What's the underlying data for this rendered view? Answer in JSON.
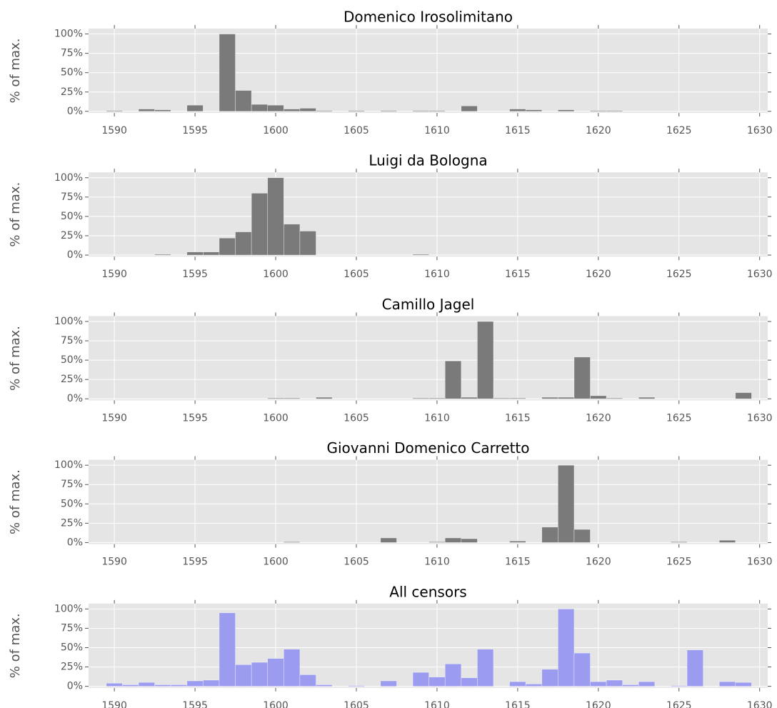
{
  "chart_data": [
    {
      "type": "histogram",
      "title": "Domenico Irosolimitano",
      "ylabel": "% of max.",
      "color": "#7a7a7a",
      "bins": [
        1589.5,
        1590.5,
        1591.5,
        1592.5,
        1593.5,
        1594.5,
        1595.5,
        1596.5,
        1597.5,
        1598.5,
        1599.5,
        1600.5,
        1601.5,
        1602.5,
        1603.5,
        1604.5,
        1605.5,
        1606.5,
        1607.5,
        1608.5,
        1609.5,
        1610.5,
        1611.5,
        1612.5,
        1613.5,
        1614.5,
        1615.5,
        1616.5,
        1617.5,
        1618.5,
        1619.5,
        1620.5,
        1621.5,
        1622.5,
        1623.5,
        1624.5,
        1625.5,
        1626.5,
        1627.5,
        1628.5,
        1629.5
      ],
      "values": [
        1,
        0,
        3,
        2,
        0,
        8,
        0,
        100,
        27,
        9,
        8,
        3,
        4,
        1,
        0,
        1,
        0,
        1,
        0,
        1,
        1,
        0,
        7,
        0,
        0,
        3,
        2,
        0,
        2,
        0,
        1,
        1,
        0,
        0,
        0,
        0,
        0,
        0,
        0,
        0
      ],
      "xlim": [
        1588.4,
        1630.5
      ],
      "xticks": [
        1590,
        1595,
        1600,
        1605,
        1610,
        1615,
        1620,
        1625,
        1630
      ],
      "ylim": [
        -2,
        107
      ],
      "yticks": [
        {
          "value": 0,
          "label": "0%"
        },
        {
          "value": 25,
          "label": "25%"
        },
        {
          "value": 50,
          "label": "50%"
        },
        {
          "value": 75,
          "label": "75%"
        },
        {
          "value": 100,
          "label": "100%"
        }
      ],
      "grid": true
    },
    {
      "type": "histogram",
      "title": "Luigi da Bologna",
      "ylabel": "% of max.",
      "color": "#7a7a7a",
      "bins": [
        1589.5,
        1590.5,
        1591.5,
        1592.5,
        1593.5,
        1594.5,
        1595.5,
        1596.5,
        1597.5,
        1598.5,
        1599.5,
        1600.5,
        1601.5,
        1602.5,
        1603.5,
        1604.5,
        1605.5,
        1606.5,
        1607.5,
        1608.5,
        1609.5,
        1610.5,
        1611.5,
        1612.5,
        1613.5,
        1614.5,
        1615.5,
        1616.5,
        1617.5,
        1618.5,
        1619.5,
        1620.5,
        1621.5,
        1622.5,
        1623.5,
        1624.5,
        1625.5,
        1626.5,
        1627.5,
        1628.5,
        1629.5
      ],
      "values": [
        0,
        0,
        0,
        1,
        0,
        4,
        4,
        22,
        30,
        80,
        100,
        40,
        31,
        0,
        0,
        0,
        0,
        0,
        0,
        1,
        0,
        0,
        0,
        0,
        0,
        0,
        0,
        0,
        0,
        0,
        0,
        0,
        0,
        0,
        0,
        0,
        0,
        0,
        0,
        0
      ],
      "xlim": [
        1588.4,
        1630.5
      ],
      "xticks": [
        1590,
        1595,
        1600,
        1605,
        1610,
        1615,
        1620,
        1625,
        1630
      ],
      "ylim": [
        -2,
        107
      ],
      "yticks": [
        {
          "value": 0,
          "label": "0%"
        },
        {
          "value": 25,
          "label": "25%"
        },
        {
          "value": 50,
          "label": "50%"
        },
        {
          "value": 75,
          "label": "75%"
        },
        {
          "value": 100,
          "label": "100%"
        }
      ],
      "grid": true
    },
    {
      "type": "histogram",
      "title": "Camillo Jagel",
      "ylabel": "% of max.",
      "color": "#7a7a7a",
      "bins": [
        1589.5,
        1590.5,
        1591.5,
        1592.5,
        1593.5,
        1594.5,
        1595.5,
        1596.5,
        1597.5,
        1598.5,
        1599.5,
        1600.5,
        1601.5,
        1602.5,
        1603.5,
        1604.5,
        1605.5,
        1606.5,
        1607.5,
        1608.5,
        1609.5,
        1610.5,
        1611.5,
        1612.5,
        1613.5,
        1614.5,
        1615.5,
        1616.5,
        1617.5,
        1618.5,
        1619.5,
        1620.5,
        1621.5,
        1622.5,
        1623.5,
        1624.5,
        1625.5,
        1626.5,
        1627.5,
        1628.5,
        1629.5
      ],
      "values": [
        0,
        0,
        0,
        0,
        0,
        0,
        0,
        0,
        0,
        0,
        1,
        1,
        0,
        2,
        0,
        0,
        0,
        0,
        0,
        1,
        1,
        49,
        2,
        100,
        1,
        1,
        0,
        2,
        2,
        54,
        4,
        1,
        0,
        2,
        0,
        0,
        0,
        0,
        0,
        8
      ],
      "xlim": [
        1588.4,
        1630.5
      ],
      "xticks": [
        1590,
        1595,
        1600,
        1605,
        1610,
        1615,
        1620,
        1625,
        1630
      ],
      "ylim": [
        -2,
        107
      ],
      "yticks": [
        {
          "value": 0,
          "label": "0%"
        },
        {
          "value": 25,
          "label": "25%"
        },
        {
          "value": 50,
          "label": "50%"
        },
        {
          "value": 75,
          "label": "75%"
        },
        {
          "value": 100,
          "label": "100%"
        }
      ],
      "grid": true
    },
    {
      "type": "histogram",
      "title": "Giovanni Domenico Carretto",
      "ylabel": "% of max.",
      "color": "#7a7a7a",
      "bins": [
        1589.5,
        1590.5,
        1591.5,
        1592.5,
        1593.5,
        1594.5,
        1595.5,
        1596.5,
        1597.5,
        1598.5,
        1599.5,
        1600.5,
        1601.5,
        1602.5,
        1603.5,
        1604.5,
        1605.5,
        1606.5,
        1607.5,
        1608.5,
        1609.5,
        1610.5,
        1611.5,
        1612.5,
        1613.5,
        1614.5,
        1615.5,
        1616.5,
        1617.5,
        1618.5,
        1619.5,
        1620.5,
        1621.5,
        1622.5,
        1623.5,
        1624.5,
        1625.5,
        1626.5,
        1627.5,
        1628.5,
        1629.5
      ],
      "values": [
        0,
        0,
        0,
        0,
        0,
        0,
        0,
        0,
        0,
        0,
        0,
        1,
        0,
        0,
        0,
        0,
        0,
        6,
        0,
        0,
        1,
        6,
        5,
        0,
        0,
        2,
        0,
        20,
        100,
        17,
        0,
        0,
        0,
        0,
        0,
        1,
        0,
        0,
        3,
        0
      ],
      "xlim": [
        1588.4,
        1630.5
      ],
      "xticks": [
        1590,
        1595,
        1600,
        1605,
        1610,
        1615,
        1620,
        1625,
        1630
      ],
      "ylim": [
        -2,
        107
      ],
      "yticks": [
        {
          "value": 0,
          "label": "0%"
        },
        {
          "value": 25,
          "label": "25%"
        },
        {
          "value": 50,
          "label": "50%"
        },
        {
          "value": 75,
          "label": "75%"
        },
        {
          "value": 100,
          "label": "100%"
        }
      ],
      "grid": true
    },
    {
      "type": "histogram",
      "title": "All censors",
      "ylabel": "% of max.",
      "color": "#9b9bef",
      "bins": [
        1589.5,
        1590.5,
        1591.5,
        1592.5,
        1593.5,
        1594.5,
        1595.5,
        1596.5,
        1597.5,
        1598.5,
        1599.5,
        1600.5,
        1601.5,
        1602.5,
        1603.5,
        1604.5,
        1605.5,
        1606.5,
        1607.5,
        1608.5,
        1609.5,
        1610.5,
        1611.5,
        1612.5,
        1613.5,
        1614.5,
        1615.5,
        1616.5,
        1617.5,
        1618.5,
        1619.5,
        1620.5,
        1621.5,
        1622.5,
        1623.5,
        1624.5,
        1625.5,
        1626.5,
        1627.5,
        1628.5,
        1629.5
      ],
      "values": [
        4,
        2,
        5,
        2,
        2,
        7,
        8,
        95,
        28,
        31,
        36,
        48,
        15,
        2,
        0,
        1,
        0,
        7,
        0,
        18,
        12,
        29,
        11,
        48,
        0,
        6,
        3,
        22,
        100,
        43,
        6,
        8,
        2,
        6,
        0,
        1,
        47,
        0,
        6,
        5
      ],
      "xlim": [
        1588.4,
        1630.5
      ],
      "xticks": [
        1590,
        1595,
        1600,
        1605,
        1610,
        1615,
        1620,
        1625,
        1630
      ],
      "ylim": [
        -2,
        107
      ],
      "yticks": [
        {
          "value": 0,
          "label": "0%"
        },
        {
          "value": 25,
          "label": "25%"
        },
        {
          "value": 50,
          "label": "50%"
        },
        {
          "value": 75,
          "label": "75%"
        },
        {
          "value": 100,
          "label": "100%"
        }
      ],
      "grid": true
    }
  ]
}
